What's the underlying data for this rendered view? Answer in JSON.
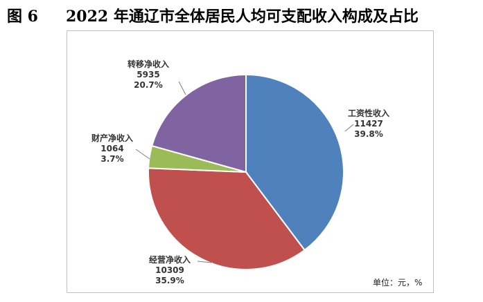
{
  "figure": {
    "number": "图 6",
    "title": "2022 年通辽市全体居民人均可支配收入构成及占比"
  },
  "chart_data": {
    "type": "pie",
    "unit_note": "单位：元，%",
    "slices": [
      {
        "name": "工资性收入",
        "value": 11427,
        "value_label": "11427",
        "percent": "39.8%",
        "color": "#4f81bd"
      },
      {
        "name": "经营净收入",
        "value": 10309,
        "value_label": "10309",
        "percent": "35.9%",
        "color": "#c0504d"
      },
      {
        "name": "财产净收入",
        "value": 1064,
        "value_label": "1064",
        "percent": "3.7%",
        "color": "#9bbb59"
      },
      {
        "name": "转移净收入",
        "value": 5935,
        "value_label": "5935",
        "percent": "20.7%",
        "color": "#8064a2"
      }
    ]
  }
}
